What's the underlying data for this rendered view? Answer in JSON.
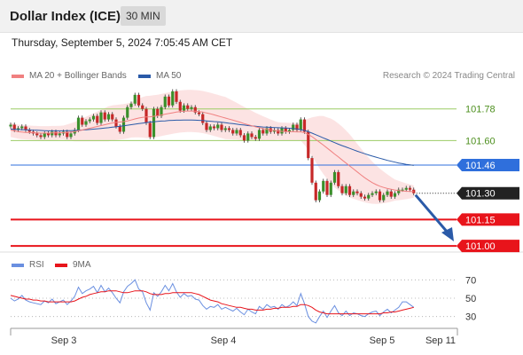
{
  "header": {
    "title": "Dollar Index (ICE)",
    "timeframe": "30 MIN",
    "timestamp": "Thursday, September 5, 2024 7:05:45 AM CET"
  },
  "legend": {
    "ma20": "MA 20 + Bollinger Bands",
    "ma50": "MA 50",
    "credit": "Research © 2024 Trading Central",
    "rsi": "RSI",
    "rsi_ma": "9MA"
  },
  "colors": {
    "ma20": "#f08080",
    "ma50": "#2a5aa8",
    "bollinger_fill": "#fbd9d9",
    "candle_up": "#3a8f2a",
    "candle_down": "#c62828",
    "resistance": "#9ccc65",
    "pivot": "#2f6fdc",
    "support": "#e8141b",
    "current": "#222222",
    "rsi": "#6a8fe0",
    "rsi_ma": "#e8141b",
    "arrow": "#2a5aa8"
  },
  "chart_data": [
    {
      "type": "candlestick",
      "ylim": [
        100.97,
        101.92
      ],
      "x_ticks": [
        "Sep 3",
        "Sep 4",
        "Sep 5",
        "Sep 11"
      ],
      "levels": [
        {
          "label": "101.78",
          "value": 101.78,
          "kind": "resistance"
        },
        {
          "label": "101.60",
          "value": 101.6,
          "kind": "resistance"
        },
        {
          "label": "101.46",
          "value": 101.46,
          "kind": "pivot"
        },
        {
          "label": "101.30",
          "value": 101.3,
          "kind": "current"
        },
        {
          "label": "101.15",
          "value": 101.15,
          "kind": "support"
        },
        {
          "label": "101.00",
          "value": 101.0,
          "kind": "support"
        }
      ],
      "close": [
        101.69,
        101.66,
        101.67,
        101.68,
        101.66,
        101.65,
        101.64,
        101.63,
        101.62,
        101.64,
        101.63,
        101.65,
        101.63,
        101.64,
        101.65,
        101.62,
        101.64,
        101.66,
        101.73,
        101.69,
        101.71,
        101.72,
        101.74,
        101.7,
        101.76,
        101.72,
        101.75,
        101.72,
        101.68,
        101.65,
        101.73,
        101.79,
        101.81,
        101.86,
        101.8,
        101.78,
        101.7,
        101.62,
        101.78,
        101.74,
        101.79,
        101.85,
        101.8,
        101.88,
        101.82,
        101.77,
        101.8,
        101.78,
        101.79,
        101.76,
        101.75,
        101.7,
        101.66,
        101.68,
        101.67,
        101.69,
        101.66,
        101.67,
        101.66,
        101.64,
        101.66,
        101.63,
        101.6,
        101.64,
        101.62,
        101.61,
        101.66,
        101.64,
        101.67,
        101.65,
        101.66,
        101.64,
        101.67,
        101.65,
        101.66,
        101.69,
        101.66,
        101.72,
        101.65,
        101.5,
        101.36,
        101.26,
        101.31,
        101.37,
        101.29,
        101.36,
        101.42,
        101.34,
        101.3,
        101.34,
        101.29,
        101.31,
        101.3,
        101.28,
        101.27,
        101.29,
        101.3,
        101.31,
        101.26,
        101.29,
        101.31,
        101.28,
        101.3,
        101.32,
        101.32,
        101.33,
        101.32,
        101.3
      ],
      "ma20": [
        101.66,
        101.655,
        101.65,
        101.648,
        101.646,
        101.645,
        101.644,
        101.643,
        101.642,
        101.642,
        101.642,
        101.643,
        101.643,
        101.644,
        101.645,
        101.646,
        101.648,
        101.65,
        101.655,
        101.66,
        101.665,
        101.67,
        101.675,
        101.68,
        101.685,
        101.69,
        101.695,
        101.7,
        101.703,
        101.705,
        101.708,
        101.712,
        101.717,
        101.723,
        101.728,
        101.732,
        101.734,
        101.735,
        101.738,
        101.741,
        101.745,
        101.75,
        101.754,
        101.758,
        101.762,
        101.765,
        101.767,
        101.768,
        101.768,
        101.767,
        101.765,
        101.762,
        101.757,
        101.752,
        101.746,
        101.74,
        101.734,
        101.728,
        101.722,
        101.716,
        101.71,
        101.703,
        101.696,
        101.69,
        101.684,
        101.678,
        101.673,
        101.668,
        101.664,
        101.66,
        101.657,
        101.654,
        101.652,
        101.651,
        101.65,
        101.65,
        101.649,
        101.649,
        101.645,
        101.635,
        101.622,
        101.606,
        101.59,
        101.574,
        101.557,
        101.54,
        101.523,
        101.506,
        101.489,
        101.472,
        101.455,
        101.438,
        101.421,
        101.404,
        101.388,
        101.373,
        101.36,
        101.349,
        101.34,
        101.333,
        101.327,
        101.322,
        101.318,
        101.315,
        101.313,
        101.311,
        101.31,
        101.309
      ],
      "ma50": [
        101.665,
        101.664,
        101.663,
        101.662,
        101.661,
        101.66,
        101.659,
        101.658,
        101.657,
        101.656,
        101.655,
        101.655,
        101.655,
        101.655,
        101.655,
        101.656,
        101.656,
        101.657,
        101.658,
        101.66,
        101.661,
        101.663,
        101.665,
        101.667,
        101.669,
        101.671,
        101.673,
        101.676,
        101.678,
        101.681,
        101.684,
        101.687,
        101.69,
        101.693,
        101.696,
        101.699,
        101.702,
        101.705,
        101.707,
        101.709,
        101.711,
        101.712,
        101.714,
        101.715,
        101.716,
        101.716,
        101.717,
        101.717,
        101.717,
        101.716,
        101.715,
        101.714,
        101.712,
        101.71,
        101.708,
        101.706,
        101.704,
        101.701,
        101.698,
        101.696,
        101.693,
        101.69,
        101.688,
        101.685,
        101.683,
        101.681,
        101.679,
        101.677,
        101.676,
        101.675,
        101.674,
        101.673,
        101.672,
        101.671,
        101.67,
        101.668,
        101.666,
        101.662,
        101.657,
        101.65,
        101.642,
        101.633,
        101.624,
        101.615,
        101.606,
        101.597,
        101.588,
        101.579,
        101.571,
        101.563,
        101.555,
        101.547,
        101.539,
        101.532,
        101.525,
        101.518,
        101.511,
        101.505,
        101.499,
        101.493,
        101.487,
        101.482,
        101.477,
        101.472,
        101.468,
        101.464,
        101.461,
        101.458
      ],
      "bb_width": [
        0.04,
        0.04,
        0.04,
        0.04,
        0.04,
        0.04,
        0.04,
        0.04,
        0.04,
        0.04,
        0.04,
        0.04,
        0.04,
        0.04,
        0.04,
        0.045,
        0.05,
        0.055,
        0.06,
        0.065,
        0.07,
        0.075,
        0.08,
        0.085,
        0.09,
        0.095,
        0.1,
        0.1,
        0.1,
        0.1,
        0.1,
        0.1,
        0.1,
        0.105,
        0.11,
        0.115,
        0.12,
        0.12,
        0.12,
        0.12,
        0.12,
        0.12,
        0.12,
        0.12,
        0.12,
        0.12,
        0.12,
        0.12,
        0.12,
        0.12,
        0.12,
        0.12,
        0.12,
        0.12,
        0.12,
        0.12,
        0.12,
        0.12,
        0.115,
        0.11,
        0.105,
        0.1,
        0.095,
        0.09,
        0.085,
        0.08,
        0.075,
        0.07,
        0.065,
        0.06,
        0.055,
        0.05,
        0.05,
        0.05,
        0.05,
        0.05,
        0.05,
        0.05,
        0.07,
        0.09,
        0.11,
        0.13,
        0.15,
        0.165,
        0.175,
        0.185,
        0.19,
        0.19,
        0.19,
        0.185,
        0.18,
        0.17,
        0.16,
        0.15,
        0.14,
        0.13,
        0.12,
        0.11,
        0.1,
        0.09,
        0.08,
        0.07,
        0.06,
        0.055,
        0.05,
        0.045,
        0.04,
        0.035
      ]
    },
    {
      "type": "line",
      "name": "RSI",
      "ylim": [
        20,
        80
      ],
      "y_ticks": [
        "70",
        "50",
        "30"
      ],
      "rsi": [
        50,
        47,
        49,
        53,
        48,
        46,
        45,
        44,
        43,
        47,
        45,
        49,
        44,
        46,
        48,
        43,
        47,
        52,
        62,
        55,
        58,
        60,
        63,
        56,
        64,
        57,
        61,
        56,
        50,
        45,
        57,
        63,
        66,
        70,
        60,
        57,
        45,
        37,
        56,
        52,
        57,
        64,
        58,
        66,
        57,
        51,
        55,
        52,
        53,
        49,
        48,
        42,
        38,
        41,
        40,
        43,
        38,
        40,
        38,
        36,
        39,
        35,
        32,
        38,
        35,
        33,
        41,
        38,
        43,
        40,
        41,
        38,
        43,
        40,
        42,
        46,
        42,
        55,
        44,
        30,
        25,
        23,
        30,
        36,
        29,
        36,
        42,
        34,
        31,
        36,
        31,
        34,
        33,
        31,
        30,
        33,
        35,
        36,
        31,
        35,
        38,
        34,
        37,
        40,
        46,
        46,
        43,
        40
      ],
      "rsi_ma": [
        53,
        52,
        51,
        50,
        49,
        49,
        48,
        48,
        47,
        47,
        46,
        46,
        46,
        46,
        46,
        46,
        46,
        47,
        49,
        51,
        52,
        54,
        55,
        56,
        57,
        57,
        58,
        58,
        58,
        57,
        56,
        56,
        57,
        58,
        58,
        58,
        57,
        55,
        54,
        54,
        54,
        55,
        55,
        56,
        56,
        56,
        56,
        56,
        56,
        55,
        54,
        52,
        50,
        48,
        47,
        46,
        44,
        43,
        42,
        41,
        40,
        40,
        39,
        38,
        38,
        37,
        37,
        37,
        38,
        38,
        39,
        39,
        40,
        40,
        40,
        41,
        41,
        43,
        43,
        42,
        40,
        37,
        35,
        34,
        33,
        33,
        33,
        33,
        33,
        33,
        33,
        33,
        33,
        33,
        33,
        33,
        33,
        33,
        33,
        34,
        34,
        35,
        35,
        36,
        37,
        38,
        39,
        40
      ]
    }
  ]
}
